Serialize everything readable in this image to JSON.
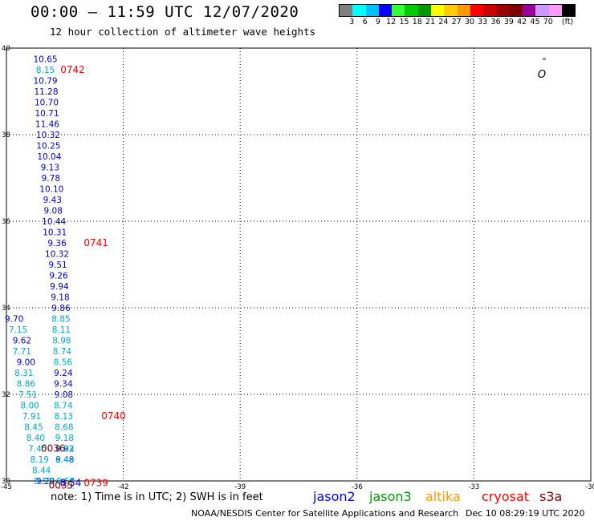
{
  "title": "00:00 – 11:59 UTC 12/07/2020",
  "subtitle": "12 hour collection of altimeter wave heights",
  "colorbar": {
    "colors": [
      "#808080",
      "#00ffff",
      "#00bfff",
      "#0000ff",
      "#33ff33",
      "#00cc00",
      "#009900",
      "#ffff00",
      "#ffcc00",
      "#ff9900",
      "#ff0000",
      "#cc0000",
      "#990000",
      "#800000",
      "#990099",
      "#cc99ff",
      "#ff99ff",
      "#000000"
    ],
    "labels": [
      "3",
      "6",
      "9",
      "12",
      "15",
      "18",
      "21",
      "24",
      "27",
      "30",
      "33",
      "36",
      "39",
      "42",
      "45",
      "70",
      "(ft)"
    ]
  },
  "map": {
    "lon_ticks": [
      "-45",
      "-42",
      "-39",
      "-36",
      "-33",
      "-30"
    ],
    "lat_ticks": [
      "40",
      "38",
      "36",
      "34",
      "32",
      "30"
    ],
    "lon_range": [
      -45,
      -30
    ],
    "lat_range": [
      30,
      40
    ]
  },
  "tracks": [
    {
      "satellite": "jason2",
      "color": "#0000cc",
      "points": [
        {
          "lon": -44.0,
          "lat": 39.75,
          "value": "10.65"
        },
        {
          "lon": -44.0,
          "lat": 39.25,
          "value": "10.79"
        },
        {
          "lon": -43.98,
          "lat": 39.0,
          "value": "11.28"
        },
        {
          "lon": -43.97,
          "lat": 38.75,
          "value": "10.70"
        },
        {
          "lon": -43.96,
          "lat": 38.5,
          "value": "10.71"
        },
        {
          "lon": -43.95,
          "lat": 38.25,
          "value": "11.46"
        },
        {
          "lon": -43.93,
          "lat": 38.0,
          "value": "10.32"
        },
        {
          "lon": -43.92,
          "lat": 37.75,
          "value": "10.25"
        },
        {
          "lon": -43.9,
          "lat": 37.5,
          "value": "10.04"
        },
        {
          "lon": -43.88,
          "lat": 37.25,
          "value": "9.13"
        },
        {
          "lon": -43.86,
          "lat": 37.0,
          "value": "9.78"
        },
        {
          "lon": -43.84,
          "lat": 36.75,
          "value": "10.10"
        },
        {
          "lon": -43.82,
          "lat": 36.5,
          "value": "9.43"
        },
        {
          "lon": -43.8,
          "lat": 36.25,
          "value": "9.08"
        },
        {
          "lon": -43.78,
          "lat": 36.0,
          "value": "10.44"
        },
        {
          "lon": -43.76,
          "lat": 35.75,
          "value": "10.31"
        },
        {
          "lon": -43.7,
          "lat": 35.5,
          "value": "9.36"
        },
        {
          "lon": -43.7,
          "lat": 35.25,
          "value": "10.32"
        },
        {
          "lon": -43.68,
          "lat": 35.0,
          "value": "9.51"
        },
        {
          "lon": -43.66,
          "lat": 34.75,
          "value": "9.26"
        },
        {
          "lon": -43.64,
          "lat": 34.5,
          "value": "9.94"
        },
        {
          "lon": -43.62,
          "lat": 34.25,
          "value": "9.18"
        },
        {
          "lon": -43.6,
          "lat": 34.0,
          "value": "9.86"
        },
        {
          "lon": -43.54,
          "lat": 32.5,
          "value": "9.24"
        },
        {
          "lon": -43.54,
          "lat": 32.25,
          "value": "9.34"
        },
        {
          "lon": -43.53,
          "lat": 32.0,
          "value": "9.08"
        },
        {
          "lon": -43.5,
          "lat": 30.75,
          "value": "9.92"
        },
        {
          "lon": -43.5,
          "lat": 30.5,
          "value": "9.48"
        }
      ]
    },
    {
      "satellite": "jason2-west",
      "color": "#0000cc",
      "points": [
        {
          "lon": -44.8,
          "lat": 33.75,
          "value": "9.70"
        },
        {
          "lon": -44.6,
          "lat": 33.25,
          "value": "9.62"
        },
        {
          "lon": -44.5,
          "lat": 32.75,
          "value": "9.00"
        },
        {
          "lon": -44.0,
          "lat": 30.0,
          "value": "9.20"
        }
      ]
    },
    {
      "satellite": "jason3",
      "color": "#00aacc",
      "points": [
        {
          "lon": -44.0,
          "lat": 39.5,
          "value": "8.15"
        },
        {
          "lon": -43.6,
          "lat": 33.75,
          "value": "8.85"
        },
        {
          "lon": -43.59,
          "lat": 33.5,
          "value": "8.11"
        },
        {
          "lon": -43.58,
          "lat": 33.25,
          "value": "8.98"
        },
        {
          "lon": -43.57,
          "lat": 33.0,
          "value": "8.74"
        },
        {
          "lon": -43.55,
          "lat": 32.75,
          "value": "8.56"
        },
        {
          "lon": -43.54,
          "lat": 31.75,
          "value": "8.74"
        },
        {
          "lon": -43.53,
          "lat": 31.5,
          "value": "8.13"
        },
        {
          "lon": -43.52,
          "lat": 31.25,
          "value": "8.68"
        },
        {
          "lon": -43.51,
          "lat": 31.0,
          "value": "9.18"
        },
        {
          "lon": -43.5,
          "lat": 30.75,
          "value": "8.83"
        },
        {
          "lon": -43.5,
          "lat": 30.5,
          "value": "8.49"
        },
        {
          "lon": -43.48,
          "lat": 30.0,
          "value": "8.57"
        },
        {
          "lon": -43.46,
          "lat": 29.75,
          "value": "8.90"
        },
        {
          "lon": -44.7,
          "lat": 33.5,
          "value": "7.15"
        },
        {
          "lon": -44.6,
          "lat": 33.0,
          "value": "7.71"
        },
        {
          "lon": -44.55,
          "lat": 32.5,
          "value": "8.31"
        },
        {
          "lon": -44.5,
          "lat": 32.25,
          "value": "8.86"
        },
        {
          "lon": -44.45,
          "lat": 32.0,
          "value": "7.51"
        },
        {
          "lon": -44.4,
          "lat": 31.75,
          "value": "8.00"
        },
        {
          "lon": -44.35,
          "lat": 31.5,
          "value": "7.91"
        },
        {
          "lon": -44.3,
          "lat": 31.25,
          "value": "8.45"
        },
        {
          "lon": -44.25,
          "lat": 31.0,
          "value": "8.40"
        },
        {
          "lon": -44.2,
          "lat": 30.75,
          "value": "7.45"
        },
        {
          "lon": -44.15,
          "lat": 30.5,
          "value": "8.19"
        },
        {
          "lon": -44.1,
          "lat": 30.25,
          "value": "8.44"
        },
        {
          "lon": -44.05,
          "lat": 30.0,
          "value": "8.57"
        }
      ]
    }
  ],
  "time_labels": [
    {
      "text": "0742",
      "color": "#ff0000"
    },
    {
      "text": "0741",
      "color": "#ff0000"
    },
    {
      "text": "0740",
      "color": "#ff0000"
    },
    {
      "text": "0036",
      "color": "#800000"
    },
    {
      "text": "0035",
      "color": "#800000"
    },
    {
      "text": "0739",
      "color": "#ff0000"
    },
    {
      "text": "8.54",
      "color": "#0000cc"
    }
  ],
  "marker_text": "°",
  "marker_letter": "O",
  "legend": {
    "note": "note:  1) Time is in UTC;  2) SWH is in feet",
    "satellites": [
      {
        "name": "jason2",
        "color": "#0000ff"
      },
      {
        "name": "jason3",
        "color": "#009900"
      },
      {
        "name": "altika",
        "color": "#ff9900"
      },
      {
        "name": "cryosat",
        "color": "#ff0000"
      },
      {
        "name": "s3a",
        "color": "#800000"
      }
    ]
  },
  "footer": "NOAA/NESDIS Center for Satellite Applications and Research",
  "footer_date": "Dec 10 08:29:19 UTC 2020"
}
